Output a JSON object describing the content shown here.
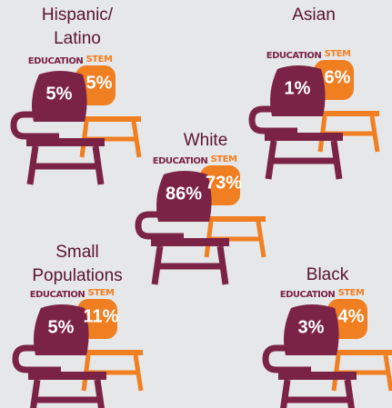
{
  "education_label": "EDUCATION",
  "stem_label": "STEM",
  "groups": [
    {
      "name": [
        "Hispanic/",
        "Latino"
      ],
      "education": "5%",
      "stem": "5%"
    },
    {
      "name": [
        "Asian"
      ],
      "education": "1%",
      "stem": "6%"
    },
    {
      "name": [
        "White"
      ],
      "education": "86%",
      "stem": "73%"
    },
    {
      "name": [
        "Small",
        "Populations"
      ],
      "education": "5%",
      "stem": "11%"
    },
    {
      "name": [
        "Black"
      ],
      "education": "3%",
      "stem": "4%"
    }
  ]
}
